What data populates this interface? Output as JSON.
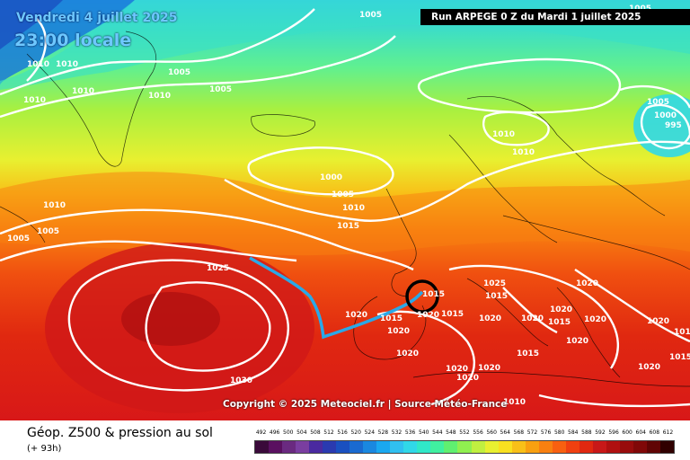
{
  "header": {
    "date_label": "Vendredi 4 juillet 2025",
    "time_label": "23:00 locale",
    "run_label": "Run ARPEGE 0 Z du Mardi 1 juillet 2025"
  },
  "copyright": "Copyright © 2025 Meteociel.fr | Source Météo-France",
  "footer": {
    "title": "Géop. Z500 & pression au sol",
    "subtitle": "(+ 93h)"
  },
  "legend": {
    "values": [
      "492",
      "496",
      "500",
      "504",
      "508",
      "512",
      "516",
      "520",
      "524",
      "528",
      "532",
      "536",
      "540",
      "544",
      "548",
      "552",
      "556",
      "560",
      "564",
      "568",
      "572",
      "576",
      "580",
      "584",
      "588",
      "592",
      "596",
      "600",
      "604",
      "608",
      "612"
    ],
    "colors": [
      "#3a0a3a",
      "#5a1060",
      "#6a2a80",
      "#7a3ea0",
      "#4a2aa0",
      "#2a3ab0",
      "#1a50c0",
      "#1a6ad0",
      "#1a88e0",
      "#1aa8f0",
      "#30c0f0",
      "#30d8e8",
      "#30e8c8",
      "#40f0a0",
      "#60f070",
      "#90f050",
      "#c0f040",
      "#e8f030",
      "#f8e020",
      "#f8c018",
      "#f8a010",
      "#f88010",
      "#f86010",
      "#f04010",
      "#e02810",
      "#c81818",
      "#b01010",
      "#980c0c",
      "#800808",
      "#600404",
      "#300000"
    ]
  },
  "isobars": {
    "labels": [
      "1005",
      "1010",
      "1010",
      "1010",
      "1010",
      "1005",
      "1010",
      "1005",
      "1000",
      "1005",
      "1010",
      "1015",
      "1010",
      "1010",
      "1005",
      "1000",
      "995",
      "1005",
      "1010",
      "1005",
      "1025",
      "1030",
      "1015",
      "1020",
      "1015",
      "1020",
      "1015",
      "1020",
      "1025",
      "1015",
      "1020",
      "1020",
      "1015",
      "1020",
      "1020",
      "1020",
      "1020",
      "1020",
      "1015",
      "1020",
      "1020",
      "1020",
      "1020",
      "1015",
      "1020",
      "1010",
      "1010",
      "1015",
      "1010",
      "1005"
    ]
  },
  "map_marks": {
    "circle": "target-circle",
    "front": "cold-front-line"
  },
  "colors": {
    "front": "#2aa8e8",
    "isobar": "#ffffff",
    "circle": "#000000"
  }
}
